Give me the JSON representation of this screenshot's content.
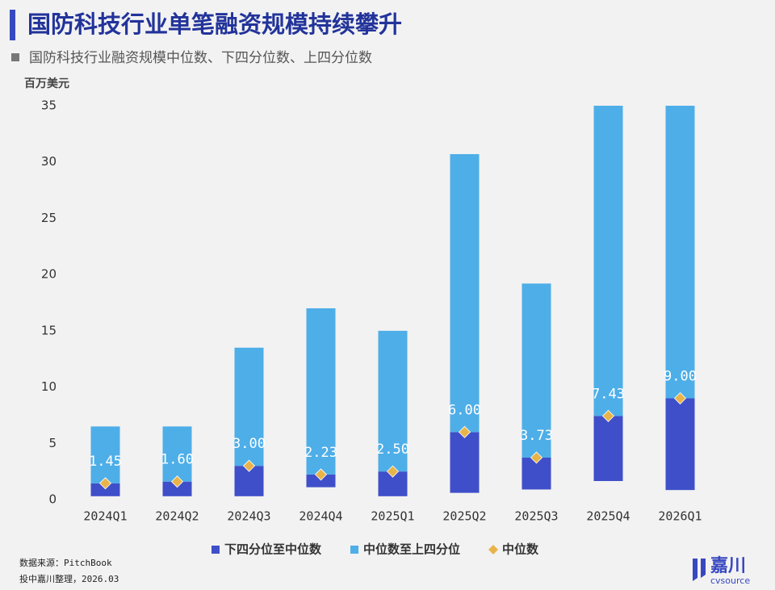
{
  "chart_data": {
    "type": "range_bar",
    "title": "国防科技行业单笔融资规模持续攀升",
    "subtitle": "国防科技行业融资规模中位数、下四分位数、上四分位数",
    "y_label": "百万美元",
    "categories": [
      "2024Q1",
      "2024Q2",
      "2024Q3",
      "2024Q4",
      "2025Q1",
      "2025Q2",
      "2025Q3",
      "2025Q4",
      "2026Q1"
    ],
    "series": [
      {
        "name": "下四分位至中位数",
        "color": "#3f4fc9",
        "values": [
          0.3,
          0.3,
          0.3,
          1.1,
          0.3,
          0.6,
          0.9,
          1.65,
          0.85
        ]
      },
      {
        "name": "中位数至上四分位",
        "color": "#4eaee8",
        "values": [
          6.5,
          6.5,
          13.5,
          17,
          15,
          30.7,
          19.2,
          35,
          35
        ]
      },
      {
        "name": "中位数",
        "color": "#e8b44a",
        "values": [
          1.45,
          1.6,
          3,
          2.23,
          2.5,
          6,
          3.73,
          7.43,
          9
        ],
        "value_labels": [
          "1.45",
          "1.60",
          "3.00",
          "2.23",
          "2.50",
          "6.00",
          "3.73",
          "7.43",
          "9.00"
        ]
      }
    ],
    "ylim": [
      0,
      35
    ],
    "yticks": [
      0,
      5,
      10,
      15,
      20,
      25,
      30,
      35
    ],
    "grid": false,
    "legend": "bottom",
    "source": [
      "数据来源：PitchBook",
      "投中嘉川整理，2026.03"
    ],
    "logo": {
      "name": "嘉川",
      "sub": "cvsource"
    }
  }
}
